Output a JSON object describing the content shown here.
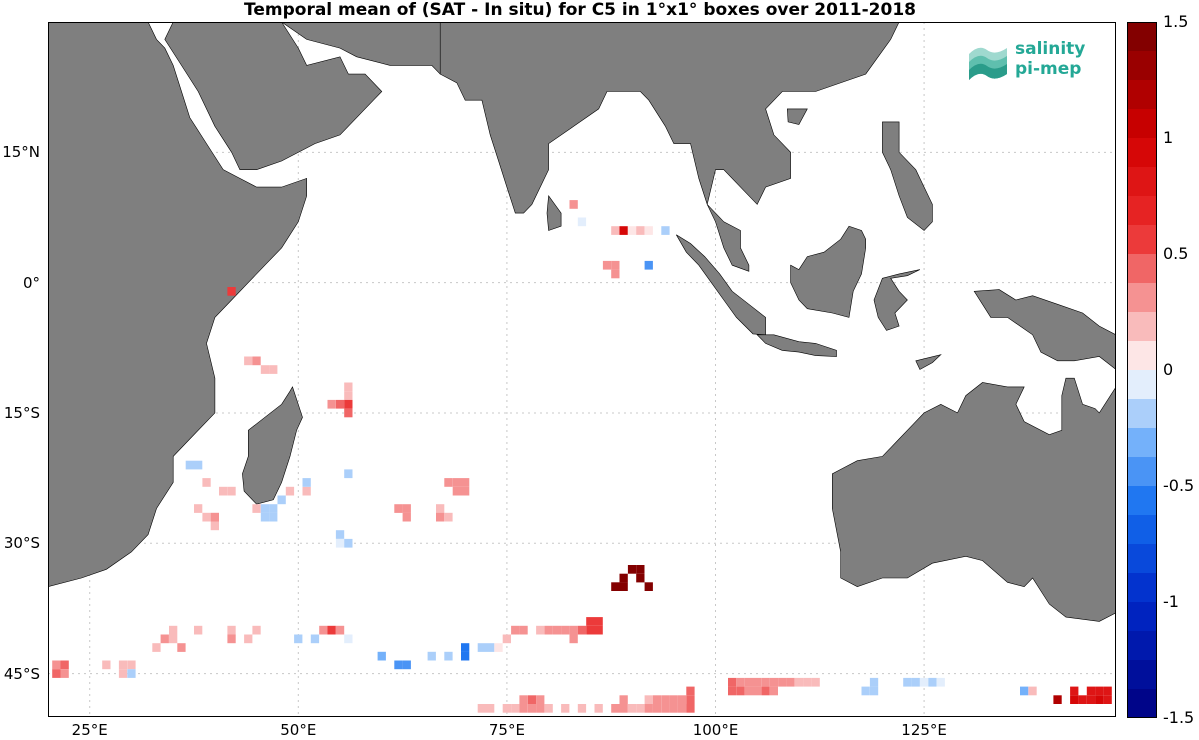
{
  "title": "Temporal mean of (SAT - In situ) for C5 in 1°x1° boxes over 2011-2018",
  "logo": {
    "line1": "salinity",
    "line2": "pi-mep",
    "color": "#24a896"
  },
  "colors": {
    "land": "#7f7f7f",
    "ocean": "#ffffff",
    "grid": "#c8c8c8",
    "frame": "#000000"
  },
  "map": {
    "projection": "equirectangular",
    "lon_range": [
      20,
      148
    ],
    "lat_range": [
      -50,
      30
    ],
    "x_ticks": [
      {
        "lon": 25,
        "label": "25°E"
      },
      {
        "lon": 50,
        "label": "50°E"
      },
      {
        "lon": 75,
        "label": "75°E"
      },
      {
        "lon": 100,
        "label": "100°E"
      },
      {
        "lon": 125,
        "label": "125°E"
      }
    ],
    "y_ticks": [
      {
        "lat": 15,
        "label": "15°N"
      },
      {
        "lat": 0,
        "label": "0°"
      },
      {
        "lat": -15,
        "label": "15°S"
      },
      {
        "lat": -30,
        "label": "30°S"
      },
      {
        "lat": -45,
        "label": "45°S"
      }
    ],
    "gridlines": "dotted"
  },
  "colorbar": {
    "range": [
      -1.5,
      1.5
    ],
    "ticks": [
      {
        "value": 1.5,
        "label": "1.5"
      },
      {
        "value": 1,
        "label": "1"
      },
      {
        "value": 0.5,
        "label": "0.5"
      },
      {
        "value": 0,
        "label": "0"
      },
      {
        "value": -0.5,
        "label": "-0.5"
      },
      {
        "value": -1,
        "label": "-1"
      },
      {
        "value": -1.5,
        "label": "-1.5"
      }
    ],
    "colormap": "diverging blue-white-red",
    "n_levels": 24
  },
  "chart_data": {
    "type": "heatmap",
    "title": "Temporal mean of (SAT - In situ) for C5 in 1°x1° boxes over 2011-2018",
    "xlabel": "",
    "ylabel": "",
    "xlim": [
      20,
      148
    ],
    "ylim": [
      -50,
      30
    ],
    "value_range": [
      -1.5,
      1.5
    ],
    "grid": true,
    "cells": [
      {
        "lon": 42,
        "lat": -1,
        "value": 0.6
      },
      {
        "lon": 83,
        "lat": 9,
        "value": 0.3
      },
      {
        "lon": 84,
        "lat": 7,
        "value": -0.1
      },
      {
        "lon": 88,
        "lat": 6,
        "value": 0.2
      },
      {
        "lon": 89,
        "lat": 6,
        "value": 0.9
      },
      {
        "lon": 90,
        "lat": 6,
        "value": 0.1
      },
      {
        "lon": 91,
        "lat": 6,
        "value": 0.15
      },
      {
        "lon": 92,
        "lat": 6,
        "value": 0.1
      },
      {
        "lon": 94,
        "lat": 6,
        "value": -0.15
      },
      {
        "lon": 87,
        "lat": 2,
        "value": 0.3
      },
      {
        "lon": 88,
        "lat": 2,
        "value": 0.35
      },
      {
        "lon": 88,
        "lat": 1,
        "value": 0.3
      },
      {
        "lon": 92,
        "lat": 2,
        "value": -0.45
      },
      {
        "lon": 44,
        "lat": -9,
        "value": 0.2
      },
      {
        "lon": 45,
        "lat": -9,
        "value": 0.25
      },
      {
        "lon": 46,
        "lat": -10,
        "value": 0.2
      },
      {
        "lon": 47,
        "lat": -10,
        "value": 0.15
      },
      {
        "lon": 56,
        "lat": -12,
        "value": 0.15
      },
      {
        "lon": 56,
        "lat": -13,
        "value": 0.2
      },
      {
        "lon": 54,
        "lat": -14,
        "value": 0.35
      },
      {
        "lon": 55,
        "lat": -14,
        "value": 0.4
      },
      {
        "lon": 56,
        "lat": -14,
        "value": 0.5
      },
      {
        "lon": 56,
        "lat": -15,
        "value": 0.45
      },
      {
        "lon": 37,
        "lat": -21,
        "value": -0.15
      },
      {
        "lon": 38,
        "lat": -21,
        "value": -0.2
      },
      {
        "lon": 56,
        "lat": -22,
        "value": -0.15
      },
      {
        "lon": 39,
        "lat": -23,
        "value": 0.15
      },
      {
        "lon": 41,
        "lat": -24,
        "value": 0.2
      },
      {
        "lon": 42,
        "lat": -24,
        "value": 0.15
      },
      {
        "lon": 49,
        "lat": -24,
        "value": 0.15
      },
      {
        "lon": 51,
        "lat": -24,
        "value": 0.2
      },
      {
        "lon": 51,
        "lat": -23,
        "value": -0.15
      },
      {
        "lon": 48,
        "lat": -25,
        "value": -0.15
      },
      {
        "lon": 68,
        "lat": -23,
        "value": 0.25
      },
      {
        "lon": 69,
        "lat": -23,
        "value": 0.3
      },
      {
        "lon": 70,
        "lat": -23,
        "value": 0.25
      },
      {
        "lon": 69,
        "lat": -24,
        "value": 0.3
      },
      {
        "lon": 70,
        "lat": -24,
        "value": 0.25
      },
      {
        "lon": 38,
        "lat": -26,
        "value": 0.15
      },
      {
        "lon": 39,
        "lat": -27,
        "value": 0.2
      },
      {
        "lon": 40,
        "lat": -27,
        "value": 0.25
      },
      {
        "lon": 40,
        "lat": -28,
        "value": 0.2
      },
      {
        "lon": 45,
        "lat": -26,
        "value": 0.15
      },
      {
        "lon": 46,
        "lat": -26,
        "value": -0.2
      },
      {
        "lon": 47,
        "lat": -26,
        "value": -0.15
      },
      {
        "lon": 46,
        "lat": -27,
        "value": -0.15
      },
      {
        "lon": 47,
        "lat": -27,
        "value": -0.2
      },
      {
        "lon": 62,
        "lat": -26,
        "value": 0.25
      },
      {
        "lon": 63,
        "lat": -26,
        "value": 0.3
      },
      {
        "lon": 63,
        "lat": -27,
        "value": 0.25
      },
      {
        "lon": 67,
        "lat": -26,
        "value": 0.2
      },
      {
        "lon": 67,
        "lat": -27,
        "value": 0.25
      },
      {
        "lon": 68,
        "lat": -27,
        "value": 0.2
      },
      {
        "lon": 55,
        "lat": -29,
        "value": -0.15
      },
      {
        "lon": 55,
        "lat": -30,
        "value": -0.1
      },
      {
        "lon": 56,
        "lat": -30,
        "value": -0.15
      },
      {
        "lon": 90,
        "lat": -33,
        "value": 1.5
      },
      {
        "lon": 91,
        "lat": -33,
        "value": 1.5
      },
      {
        "lon": 89,
        "lat": -34,
        "value": 1.5
      },
      {
        "lon": 91,
        "lat": -34,
        "value": 1.5
      },
      {
        "lon": 88,
        "lat": -35,
        "value": 1.5
      },
      {
        "lon": 89,
        "lat": -35,
        "value": 1.5
      },
      {
        "lon": 92,
        "lat": -35,
        "value": 1.5
      },
      {
        "lon": 35,
        "lat": -40,
        "value": 0.15
      },
      {
        "lon": 38,
        "lat": -40,
        "value": 0.15
      },
      {
        "lon": 42,
        "lat": -40,
        "value": 0.15
      },
      {
        "lon": 45,
        "lat": -40,
        "value": 0.15
      },
      {
        "lon": 53,
        "lat": -40,
        "value": 0.35
      },
      {
        "lon": 54,
        "lat": -40,
        "value": 0.5
      },
      {
        "lon": 55,
        "lat": -40,
        "value": 0.3
      },
      {
        "lon": 34,
        "lat": -41,
        "value": 0.25
      },
      {
        "lon": 35,
        "lat": -41,
        "value": 0.15
      },
      {
        "lon": 42,
        "lat": -41,
        "value": 0.35
      },
      {
        "lon": 44,
        "lat": -41,
        "value": 0.15
      },
      {
        "lon": 50,
        "lat": -41,
        "value": -0.2
      },
      {
        "lon": 52,
        "lat": -41,
        "value": -0.15
      },
      {
        "lon": 56,
        "lat": -41,
        "value": -0.1
      },
      {
        "lon": 33,
        "lat": -42,
        "value": 0.2
      },
      {
        "lon": 36,
        "lat": -42,
        "value": 0.25
      },
      {
        "lon": 60,
        "lat": -43,
        "value": -0.3
      },
      {
        "lon": 62,
        "lat": -44,
        "value": -0.4
      },
      {
        "lon": 63,
        "lat": -44,
        "value": -0.45
      },
      {
        "lon": 66,
        "lat": -43,
        "value": -0.2
      },
      {
        "lon": 68,
        "lat": -43,
        "value": -0.15
      },
      {
        "lon": 70,
        "lat": -42,
        "value": -0.55
      },
      {
        "lon": 70,
        "lat": -43,
        "value": -0.6
      },
      {
        "lon": 72,
        "lat": -42,
        "value": -0.2
      },
      {
        "lon": 73,
        "lat": -42,
        "value": -0.25
      },
      {
        "lon": 74,
        "lat": -42,
        "value": 0.1
      },
      {
        "lon": 75,
        "lat": -41,
        "value": 0.15
      },
      {
        "lon": 76,
        "lat": -40,
        "value": 0.25
      },
      {
        "lon": 77,
        "lat": -40,
        "value": 0.3
      },
      {
        "lon": 79,
        "lat": -40,
        "value": 0.2
      },
      {
        "lon": 80,
        "lat": -40,
        "value": 0.25
      },
      {
        "lon": 81,
        "lat": -40,
        "value": 0.3
      },
      {
        "lon": 82,
        "lat": -40,
        "value": 0.25
      },
      {
        "lon": 83,
        "lat": -40,
        "value": 0.35
      },
      {
        "lon": 84,
        "lat": -40,
        "value": 0.45
      },
      {
        "lon": 85,
        "lat": -40,
        "value": 0.5
      },
      {
        "lon": 86,
        "lat": -40,
        "value": 0.55
      },
      {
        "lon": 85,
        "lat": -39,
        "value": 0.5
      },
      {
        "lon": 86,
        "lat": -39,
        "value": 0.55
      },
      {
        "lon": 83,
        "lat": -41,
        "value": 0.3
      },
      {
        "lon": 21,
        "lat": -44,
        "value": 0.35
      },
      {
        "lon": 22,
        "lat": -44,
        "value": 0.4
      },
      {
        "lon": 21,
        "lat": -45,
        "value": 0.4
      },
      {
        "lon": 22,
        "lat": -45,
        "value": 0.35
      },
      {
        "lon": 27,
        "lat": -44,
        "value": 0.15
      },
      {
        "lon": 29,
        "lat": -44,
        "value": 0.2
      },
      {
        "lon": 30,
        "lat": -44,
        "value": 0.15
      },
      {
        "lon": 29,
        "lat": -45,
        "value": 0.2
      },
      {
        "lon": 30,
        "lat": -45,
        "value": -0.15
      },
      {
        "lon": 102,
        "lat": -46,
        "value": 0.4
      },
      {
        "lon": 103,
        "lat": -46,
        "value": 0.35
      },
      {
        "lon": 104,
        "lat": -46,
        "value": 0.3
      },
      {
        "lon": 105,
        "lat": -46,
        "value": 0.25
      },
      {
        "lon": 106,
        "lat": -46,
        "value": 0.3
      },
      {
        "lon": 107,
        "lat": -46,
        "value": 0.35
      },
      {
        "lon": 108,
        "lat": -46,
        "value": 0.3
      },
      {
        "lon": 109,
        "lat": -46,
        "value": 0.25
      },
      {
        "lon": 110,
        "lat": -46,
        "value": 0.2
      },
      {
        "lon": 111,
        "lat": -46,
        "value": 0.15
      },
      {
        "lon": 112,
        "lat": -46,
        "value": 0.15
      },
      {
        "lon": 102,
        "lat": -47,
        "value": 0.45
      },
      {
        "lon": 103,
        "lat": -47,
        "value": 0.4
      },
      {
        "lon": 104,
        "lat": -47,
        "value": 0.3
      },
      {
        "lon": 105,
        "lat": -47,
        "value": 0.35
      },
      {
        "lon": 106,
        "lat": -47,
        "value": 0.4
      },
      {
        "lon": 107,
        "lat": -47,
        "value": 0.35
      },
      {
        "lon": 119,
        "lat": -46,
        "value": -0.15
      },
      {
        "lon": 118,
        "lat": -47,
        "value": -0.2
      },
      {
        "lon": 119,
        "lat": -47,
        "value": -0.15
      },
      {
        "lon": 123,
        "lat": -46,
        "value": -0.2
      },
      {
        "lon": 124,
        "lat": -46,
        "value": -0.15
      },
      {
        "lon": 125,
        "lat": -46,
        "value": -0.1
      },
      {
        "lon": 126,
        "lat": -46,
        "value": -0.15
      },
      {
        "lon": 127,
        "lat": -46,
        "value": -0.1
      },
      {
        "lon": 97,
        "lat": -47,
        "value": 0.4
      },
      {
        "lon": 97,
        "lat": -48,
        "value": 0.45
      },
      {
        "lon": 95,
        "lat": -48,
        "value": 0.3
      },
      {
        "lon": 96,
        "lat": -48,
        "value": 0.35
      },
      {
        "lon": 92,
        "lat": -48,
        "value": 0.2
      },
      {
        "lon": 93,
        "lat": -48,
        "value": 0.25
      },
      {
        "lon": 94,
        "lat": -48,
        "value": 0.3
      },
      {
        "lon": 77,
        "lat": -48,
        "value": 0.35
      },
      {
        "lon": 78,
        "lat": -48,
        "value": 0.4
      },
      {
        "lon": 79,
        "lat": -48,
        "value": 0.3
      },
      {
        "lon": 89,
        "lat": -48,
        "value": 0.25
      },
      {
        "lon": 72,
        "lat": -49,
        "value": 0.15
      },
      {
        "lon": 73,
        "lat": -49,
        "value": 0.15
      },
      {
        "lon": 75,
        "lat": -49,
        "value": 0.2
      },
      {
        "lon": 76,
        "lat": -49,
        "value": 0.2
      },
      {
        "lon": 77,
        "lat": -49,
        "value": 0.3
      },
      {
        "lon": 78,
        "lat": -49,
        "value": 0.35
      },
      {
        "lon": 79,
        "lat": -49,
        "value": 0.25
      },
      {
        "lon": 80,
        "lat": -49,
        "value": 0.15
      },
      {
        "lon": 82,
        "lat": -49,
        "value": 0.15
      },
      {
        "lon": 84,
        "lat": -49,
        "value": 0.2
      },
      {
        "lon": 86,
        "lat": -49,
        "value": 0.15
      },
      {
        "lon": 88,
        "lat": -49,
        "value": 0.25
      },
      {
        "lon": 89,
        "lat": -49,
        "value": 0.3
      },
      {
        "lon": 90,
        "lat": -49,
        "value": 0.2
      },
      {
        "lon": 91,
        "lat": -49,
        "value": 0.15
      },
      {
        "lon": 92,
        "lat": -49,
        "value": 0.25
      },
      {
        "lon": 93,
        "lat": -49,
        "value": 0.3
      },
      {
        "lon": 94,
        "lat": -49,
        "value": 0.35
      },
      {
        "lon": 95,
        "lat": -49,
        "value": 0.3
      },
      {
        "lon": 96,
        "lat": -49,
        "value": 0.35
      },
      {
        "lon": 97,
        "lat": -49,
        "value": 0.4
      },
      {
        "lon": 137,
        "lat": -47,
        "value": -0.3
      },
      {
        "lon": 138,
        "lat": -47,
        "value": 0.2
      },
      {
        "lon": 143,
        "lat": -47,
        "value": 0.8
      },
      {
        "lon": 145,
        "lat": -47,
        "value": 0.85
      },
      {
        "lon": 146,
        "lat": -47,
        "value": 0.75
      },
      {
        "lon": 147,
        "lat": -47,
        "value": 0.8
      },
      {
        "lon": 141,
        "lat": -48,
        "value": 1.2
      },
      {
        "lon": 143,
        "lat": -48,
        "value": 0.9
      },
      {
        "lon": 144,
        "lat": -48,
        "value": 0.85
      },
      {
        "lon": 145,
        "lat": -48,
        "value": 0.8
      },
      {
        "lon": 146,
        "lat": -48,
        "value": 0.9
      },
      {
        "lon": 147,
        "lat": -48,
        "value": 0.85
      }
    ]
  }
}
